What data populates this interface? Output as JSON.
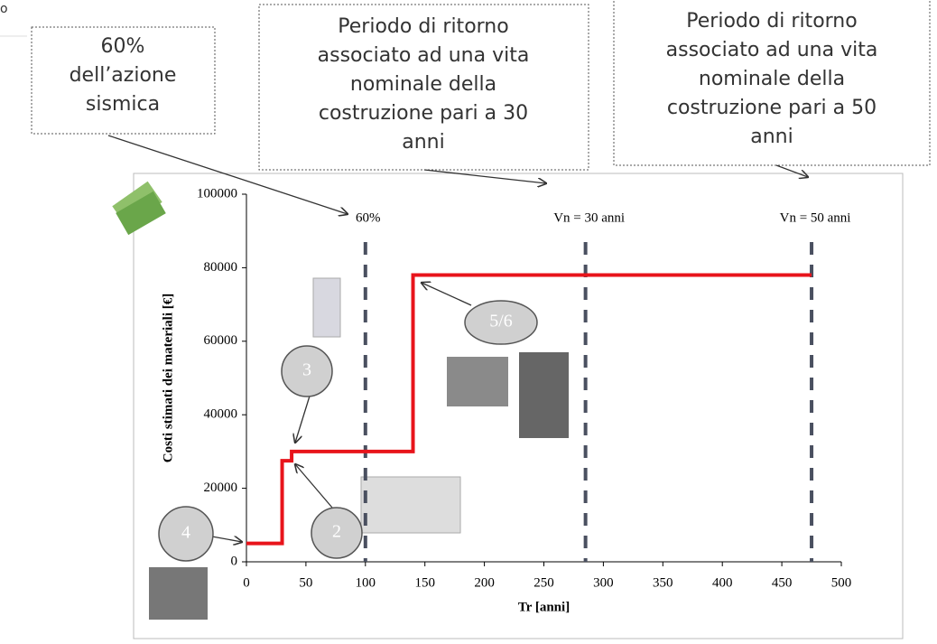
{
  "side_text": "o",
  "callouts": [
    {
      "lines": [
        "60%",
        "dell’azione",
        "sismica"
      ]
    },
    {
      "lines": [
        "Periodo di ritorno",
        "associato ad una vita",
        "nominale della",
        "costruzione pari a 30",
        "anni"
      ]
    },
    {
      "lines": [
        "Periodo di ritorno",
        "associato ad una vita",
        "nominale della",
        "costruzione pari a 50",
        "anni"
      ]
    }
  ],
  "bubbles": [
    "4",
    "3",
    "2",
    "5/6"
  ],
  "chart_data": {
    "type": "line",
    "x_label": "Tr [anni]",
    "y_label": "Costi stimati dei materiali [€]",
    "x": [
      0,
      30,
      30,
      38,
      38,
      140,
      140,
      475
    ],
    "series": [
      {
        "color": "#e8141b",
        "values": [
          5000,
          5000,
          27500,
          27500,
          30000,
          30000,
          78000,
          78000
        ]
      }
    ],
    "xlim": [
      0,
      500
    ],
    "xticks": [
      0,
      50,
      100,
      150,
      200,
      250,
      300,
      350,
      400,
      450,
      500
    ],
    "ylim": [
      0,
      100000
    ],
    "yticks": [
      0,
      20000,
      40000,
      60000,
      80000,
      100000
    ],
    "vlines": [
      {
        "value": 100,
        "label": "60%"
      },
      {
        "value": 285,
        "label": "Vn = 30 anni"
      },
      {
        "value": 475,
        "label": "Vn = 50 anni"
      }
    ],
    "vline_color": "#4a5060"
  }
}
